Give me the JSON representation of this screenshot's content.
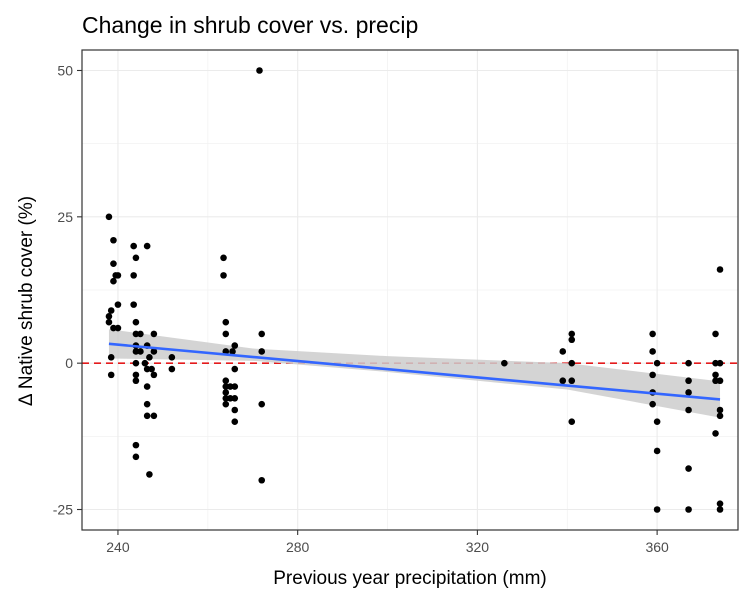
{
  "chart_data": {
    "type": "scatter",
    "title": "Change in shrub cover vs. precip",
    "xlabel": "Previous year precipitation (mm)",
    "ylabel": "Δ Native shrub cover (%)",
    "xlim": [
      232,
      378
    ],
    "ylim": [
      -28.5,
      53.5
    ],
    "x_ticks": [
      240,
      280,
      320,
      360
    ],
    "y_ticks": [
      -25,
      0,
      25,
      50
    ],
    "grid": true,
    "reference_line": {
      "y": 0,
      "color": "#e41a1c",
      "style": "dashed"
    },
    "trend": {
      "method": "linear fit with confidence band",
      "color": "#3366ff",
      "band_color": "#cccccc",
      "line": [
        [
          238,
          3.3
        ],
        [
          374,
          -6.2
        ]
      ],
      "band": [
        [
          238,
          0.8,
          5.8
        ],
        [
          270,
          0.4,
          2.5
        ],
        [
          300,
          -1.5,
          1.2
        ],
        [
          340,
          -4.5,
          0.0
        ],
        [
          374,
          -9.3,
          -3.1
        ]
      ]
    },
    "point_color": "#000000",
    "points": [
      [
        238,
        25
      ],
      [
        238.5,
        9
      ],
      [
        238,
        8
      ],
      [
        238,
        7
      ],
      [
        239,
        6
      ],
      [
        238.5,
        1
      ],
      [
        238.5,
        -2
      ],
      [
        239,
        21
      ],
      [
        239,
        17
      ],
      [
        239,
        14
      ],
      [
        239.5,
        15
      ],
      [
        240,
        15
      ],
      [
        240,
        10
      ],
      [
        240,
        6
      ],
      [
        243.5,
        20
      ],
      [
        243.5,
        15
      ],
      [
        243.5,
        10
      ],
      [
        244,
        18
      ],
      [
        244,
        7
      ],
      [
        244,
        5
      ],
      [
        244,
        3
      ],
      [
        244,
        2
      ],
      [
        244,
        0
      ],
      [
        244,
        -2
      ],
      [
        244,
        -3
      ],
      [
        244,
        -14
      ],
      [
        244,
        -16
      ],
      [
        245,
        5
      ],
      [
        245,
        2
      ],
      [
        246,
        0
      ],
      [
        246.5,
        20
      ],
      [
        246.5,
        3
      ],
      [
        246.5,
        -1
      ],
      [
        246.5,
        -4
      ],
      [
        246.5,
        -7
      ],
      [
        246.5,
        -9
      ],
      [
        247,
        -19
      ],
      [
        247,
        1
      ],
      [
        247.5,
        -1
      ],
      [
        248,
        5
      ],
      [
        248,
        2
      ],
      [
        248,
        -2
      ],
      [
        248,
        -9
      ],
      [
        252,
        1
      ],
      [
        252,
        -1
      ],
      [
        263.5,
        18
      ],
      [
        263.5,
        15
      ],
      [
        264,
        7
      ],
      [
        264,
        5
      ],
      [
        264,
        2
      ],
      [
        264,
        -3
      ],
      [
        264,
        -4
      ],
      [
        264,
        -5
      ],
      [
        264,
        -6
      ],
      [
        264,
        -7
      ],
      [
        265,
        -4
      ],
      [
        265,
        -6
      ],
      [
        265.5,
        2
      ],
      [
        266,
        -4
      ],
      [
        266,
        -6
      ],
      [
        266,
        -8
      ],
      [
        266,
        -10
      ],
      [
        266,
        3
      ],
      [
        266,
        -1
      ],
      [
        272,
        5
      ],
      [
        272,
        2
      ],
      [
        272,
        -7
      ],
      [
        272,
        -20
      ],
      [
        271.5,
        50
      ],
      [
        326,
        0
      ],
      [
        339,
        2
      ],
      [
        339,
        -3
      ],
      [
        341,
        5
      ],
      [
        341,
        4
      ],
      [
        341,
        0
      ],
      [
        341,
        -3
      ],
      [
        341,
        -10
      ],
      [
        359,
        5
      ],
      [
        359,
        2
      ],
      [
        359,
        -2
      ],
      [
        359,
        -5
      ],
      [
        359,
        -7
      ],
      [
        360,
        0
      ],
      [
        360,
        -10
      ],
      [
        360,
        -15
      ],
      [
        360,
        -25
      ],
      [
        367,
        0
      ],
      [
        367,
        -3
      ],
      [
        367,
        -5
      ],
      [
        367,
        -8
      ],
      [
        367,
        -18
      ],
      [
        367,
        -25
      ],
      [
        373,
        5
      ],
      [
        373,
        0
      ],
      [
        373,
        -2
      ],
      [
        373,
        -3
      ],
      [
        373,
        -12
      ],
      [
        374,
        0
      ],
      [
        374,
        16
      ],
      [
        374,
        -3
      ],
      [
        374,
        -8
      ],
      [
        374,
        -9
      ],
      [
        374,
        -24
      ],
      [
        374,
        -25
      ]
    ]
  }
}
